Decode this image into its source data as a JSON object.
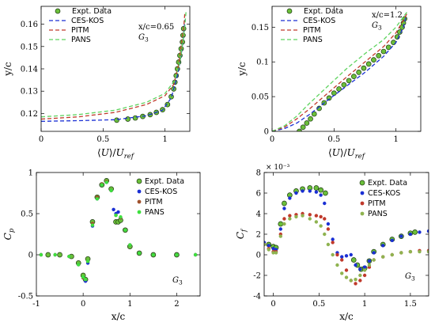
{
  "chart_data": [
    {
      "id": "tl",
      "type": "line",
      "xlabel": "⟨U⟩/U_ref",
      "ylabel": "y/c",
      "xlim": [
        0,
        1.2
      ],
      "ylim": [
        0.112,
        0.168
      ],
      "xticks": [
        0,
        0.5,
        1
      ],
      "xticklabels": [
        "0",
        "0.5",
        "1"
      ],
      "yticks": [
        0.12,
        0.13,
        0.14,
        0.15,
        0.16
      ],
      "yticklabels": [
        "0.12",
        "0.13",
        "0.14",
        "0.15",
        "0.16"
      ],
      "annotations": [
        "x/c=0.65",
        "G₃"
      ],
      "legend": "top-left",
      "series": [
        {
          "name": "Expt. Data",
          "kind": "marker",
          "color": "#6bbf3a",
          "x": [
            0.61,
            0.7,
            0.76,
            0.82,
            0.88,
            0.93,
            0.98,
            1.02,
            1.05,
            1.07,
            1.08,
            1.09,
            1.1,
            1.11,
            1.12,
            1.13,
            1.14,
            1.145,
            1.15
          ],
          "y": [
            0.117,
            0.1175,
            0.118,
            0.1187,
            0.1195,
            0.1205,
            0.1217,
            0.124,
            0.1275,
            0.131,
            0.134,
            0.137,
            0.14,
            0.143,
            0.146,
            0.149,
            0.152,
            0.155,
            0.158
          ]
        },
        {
          "name": "CES-KOS",
          "kind": "dashed",
          "color": "#1a2fd4",
          "x": [
            0.0,
            0.3,
            0.6,
            0.85,
            0.98,
            1.05,
            1.1,
            1.13,
            1.15,
            1.16
          ],
          "y": [
            0.1165,
            0.1168,
            0.1172,
            0.119,
            0.1215,
            0.127,
            0.137,
            0.146,
            0.155,
            0.162
          ]
        },
        {
          "name": "PITM",
          "kind": "dashed",
          "color": "#c0392b",
          "x": [
            0.0,
            0.3,
            0.6,
            0.85,
            1.0,
            1.07,
            1.11,
            1.13,
            1.15,
            1.16
          ],
          "y": [
            0.1175,
            0.1185,
            0.1205,
            0.124,
            0.128,
            0.133,
            0.142,
            0.15,
            0.158,
            0.165
          ]
        },
        {
          "name": "PANS",
          "kind": "dashed",
          "color": "#5fd35f",
          "x": [
            0.0,
            0.3,
            0.6,
            0.85,
            1.0,
            1.08,
            1.12,
            1.14,
            1.16,
            1.17
          ],
          "y": [
            0.1185,
            0.1195,
            0.1215,
            0.125,
            0.129,
            0.135,
            0.143,
            0.151,
            0.159,
            0.166
          ]
        }
      ]
    },
    {
      "id": "tr",
      "type": "line",
      "xlabel": "⟨U⟩/U_ref",
      "ylabel": "y/c",
      "xlim": [
        0,
        1.2
      ],
      "ylim": [
        0,
        0.18
      ],
      "xticks": [
        0,
        0.5,
        1
      ],
      "xticklabels": [
        "0",
        "0.5",
        "1"
      ],
      "yticks": [
        0,
        0.05,
        0.1,
        0.15
      ],
      "yticklabels": [
        "0",
        "0.05",
        "0.1",
        "0.15"
      ],
      "annotations": [
        "x/c=1.2",
        "G₃"
      ],
      "legend": "top-left",
      "series": [
        {
          "name": "Expt. Data",
          "kind": "marker",
          "color": "#6bbf3a",
          "x": [
            0.22,
            0.25,
            0.28,
            0.31,
            0.34,
            0.38,
            0.42,
            0.46,
            0.5,
            0.54,
            0.58,
            0.62,
            0.66,
            0.7,
            0.74,
            0.78,
            0.82,
            0.86,
            0.9,
            0.94,
            0.98,
            1.01,
            1.03,
            1.05,
            1.06,
            1.07
          ],
          "y": [
            0.0,
            0.006,
            0.012,
            0.018,
            0.025,
            0.033,
            0.041,
            0.048,
            0.055,
            0.061,
            0.067,
            0.073,
            0.079,
            0.085,
            0.091,
            0.097,
            0.103,
            0.109,
            0.115,
            0.121,
            0.128,
            0.136,
            0.143,
            0.15,
            0.156,
            0.162
          ]
        },
        {
          "name": "CES-KOS",
          "kind": "dashed",
          "color": "#1a2fd4",
          "x": [
            0.0,
            0.1,
            0.2,
            0.3,
            0.45,
            0.6,
            0.75,
            0.9,
            1.0,
            1.06,
            1.08
          ],
          "y": [
            0.0,
            0.004,
            0.012,
            0.024,
            0.045,
            0.065,
            0.085,
            0.108,
            0.128,
            0.15,
            0.165
          ]
        },
        {
          "name": "PITM",
          "kind": "dashed",
          "color": "#c0392b",
          "x": [
            0.0,
            0.1,
            0.2,
            0.3,
            0.45,
            0.6,
            0.75,
            0.9,
            1.0,
            1.06,
            1.09
          ],
          "y": [
            0.0,
            0.006,
            0.018,
            0.032,
            0.055,
            0.078,
            0.1,
            0.122,
            0.142,
            0.16,
            0.17
          ]
        },
        {
          "name": "PANS",
          "kind": "dashed",
          "color": "#5fd35f",
          "x": [
            0.0,
            0.1,
            0.2,
            0.3,
            0.45,
            0.6,
            0.75,
            0.9,
            1.0,
            1.06,
            1.09
          ],
          "y": [
            0.0,
            0.008,
            0.022,
            0.04,
            0.065,
            0.09,
            0.112,
            0.132,
            0.15,
            0.165,
            0.172
          ]
        }
      ]
    },
    {
      "id": "bl",
      "type": "scatter",
      "xlabel": "x/c",
      "ylabel": "C_p",
      "xlim": [
        -1,
        2.5
      ],
      "ylim": [
        -0.5,
        1
      ],
      "xticks": [
        -1,
        0,
        1,
        2
      ],
      "xticklabels": [
        "-1",
        "0",
        "1",
        "2"
      ],
      "yticks": [
        -0.5,
        0,
        0.5,
        1
      ],
      "yticklabels": [
        "-0.5",
        "0",
        "0.5",
        "1"
      ],
      "annotations": [
        "G₃"
      ],
      "legend": "top-right",
      "series": [
        {
          "name": "Expt. Data",
          "kind": "marker",
          "color": "#6bbf3a",
          "x": [
            -0.75,
            -0.5,
            -0.25,
            -0.1,
            0.0,
            0.05,
            0.1,
            0.2,
            0.3,
            0.4,
            0.5,
            0.6,
            0.7,
            0.75,
            0.8,
            0.9,
            1.0,
            1.2,
            1.5,
            2.0
          ],
          "y": [
            0.0,
            0.0,
            -0.02,
            -0.1,
            -0.25,
            -0.3,
            -0.05,
            0.4,
            0.7,
            0.85,
            0.9,
            0.8,
            0.4,
            0.4,
            0.42,
            0.3,
            0.1,
            0.02,
            0.0,
            0.0
          ]
        },
        {
          "name": "CES-KOS",
          "kind": "marker",
          "color": "#1a2fd4",
          "x": [
            -0.9,
            -0.6,
            -0.3,
            -0.1,
            0.0,
            0.05,
            0.1,
            0.2,
            0.3,
            0.4,
            0.5,
            0.6,
            0.65,
            0.7,
            0.75,
            0.8,
            0.9,
            1.0,
            1.2,
            1.5,
            2.0,
            2.4
          ],
          "y": [
            0.0,
            0.0,
            -0.02,
            -0.12,
            -0.28,
            -0.32,
            -0.1,
            0.35,
            0.68,
            0.85,
            0.88,
            0.78,
            0.55,
            0.5,
            0.52,
            0.45,
            0.3,
            0.12,
            0.02,
            0.0,
            0.0,
            0.0
          ]
        },
        {
          "name": "PITM",
          "kind": "marker",
          "color": "#a0522d",
          "x": [
            -0.9,
            -0.6,
            -0.3,
            -0.1,
            0.0,
            0.05,
            0.1,
            0.2,
            0.3,
            0.4,
            0.5,
            0.6,
            0.7,
            0.8,
            0.9,
            1.0,
            1.2,
            1.5,
            2.0,
            2.4
          ],
          "y": [
            0.0,
            0.0,
            -0.02,
            -0.12,
            -0.28,
            -0.3,
            -0.08,
            0.38,
            0.7,
            0.86,
            0.89,
            0.78,
            0.48,
            0.45,
            0.3,
            0.12,
            0.02,
            0.0,
            0.0,
            0.0
          ]
        },
        {
          "name": "PANS",
          "kind": "marker",
          "color": "#3ee03e",
          "x": [
            -0.9,
            -0.6,
            -0.3,
            -0.1,
            0.0,
            0.05,
            0.1,
            0.2,
            0.3,
            0.4,
            0.5,
            0.6,
            0.7,
            0.8,
            0.9,
            1.0,
            1.2,
            1.5,
            2.0,
            2.4
          ],
          "y": [
            0.0,
            0.0,
            -0.02,
            -0.12,
            -0.27,
            -0.3,
            -0.08,
            0.36,
            0.68,
            0.85,
            0.88,
            0.78,
            0.48,
            0.46,
            0.3,
            0.12,
            0.02,
            0.0,
            0.0,
            0.0
          ]
        }
      ]
    },
    {
      "id": "br",
      "type": "scatter",
      "xlabel": "x/c",
      "ylabel": "C_f",
      "exponent": "× 10⁻³",
      "xlim": [
        -0.1,
        1.7
      ],
      "ylim": [
        -4,
        8
      ],
      "xticks": [
        0,
        0.5,
        1,
        1.5
      ],
      "xticklabels": [
        "0",
        "0.5",
        "1",
        "1.5"
      ],
      "yticks": [
        -4,
        -2,
        0,
        2,
        4,
        6,
        8
      ],
      "yticklabels": [
        "-4",
        "-2",
        "0",
        "2",
        "4",
        "6",
        "8"
      ],
      "annotations": [
        "G₃"
      ],
      "legend": "top-right",
      "series": [
        {
          "name": "Expt. Data",
          "kind": "marker",
          "color": "#6bbf3a",
          "x": [
            -0.05,
            0.0,
            0.03,
            0.08,
            0.12,
            0.18,
            0.25,
            0.32,
            0.4,
            0.47,
            0.52,
            0.57,
            0.88,
            0.92,
            0.96,
            1.0,
            1.05,
            1.1,
            1.2,
            1.3,
            1.4,
            1.5,
            1.55
          ],
          "y": [
            1.0,
            0.8,
            0.7,
            3.0,
            5.0,
            5.8,
            6.2,
            6.4,
            6.5,
            6.5,
            6.3,
            6.0,
            -0.5,
            -1.0,
            -1.4,
            -1.3,
            -0.6,
            0.3,
            1.0,
            1.5,
            1.8,
            2.1,
            2.2
          ]
        },
        {
          "name": "CES-KOS",
          "kind": "marker",
          "color": "#1a2fd4",
          "x": [
            -0.1,
            -0.05,
            0.0,
            0.03,
            0.08,
            0.12,
            0.18,
            0.25,
            0.32,
            0.4,
            0.47,
            0.52,
            0.56,
            0.6,
            0.65,
            0.7,
            0.75,
            0.8,
            0.85,
            0.9,
            0.95,
            1.0,
            1.05,
            1.1,
            1.2,
            1.3,
            1.4,
            1.5,
            1.6,
            1.7
          ],
          "y": [
            1.2,
            0.9,
            0.6,
            0.5,
            2.5,
            4.5,
            5.5,
            6.0,
            6.2,
            6.2,
            6.1,
            5.8,
            5.0,
            3.0,
            1.5,
            0.2,
            -0.2,
            -0.1,
            0.0,
            -1.0,
            -1.4,
            -1.2,
            -0.6,
            0.2,
            0.9,
            1.4,
            1.8,
            2.0,
            2.2,
            2.3
          ]
        },
        {
          "name": "PITM",
          "kind": "marker",
          "color": "#c0392b",
          "x": [
            -0.1,
            -0.05,
            0.0,
            0.03,
            0.08,
            0.12,
            0.18,
            0.25,
            0.32,
            0.4,
            0.47,
            0.52,
            0.56,
            0.6,
            0.65,
            0.7,
            0.75,
            0.8,
            0.85,
            0.9,
            0.95,
            1.0,
            1.05,
            1.1,
            1.2,
            1.3,
            1.4,
            1.5,
            1.6,
            1.7
          ],
          "y": [
            1.0,
            0.6,
            0.3,
            0.3,
            2.0,
            3.5,
            3.8,
            3.9,
            4.0,
            3.9,
            3.8,
            3.7,
            3.5,
            2.5,
            1.2,
            0.0,
            -0.5,
            -1.5,
            -2.5,
            -2.8,
            -2.5,
            -2.0,
            -1.2,
            -0.5,
            -0.2,
            0.0,
            0.2,
            0.3,
            0.4,
            0.4
          ]
        },
        {
          "name": "PANS",
          "kind": "marker",
          "color": "#8fb350",
          "x": [
            -0.1,
            -0.05,
            0.0,
            0.03,
            0.08,
            0.12,
            0.18,
            0.25,
            0.32,
            0.4,
            0.47,
            0.52,
            0.56,
            0.6,
            0.65,
            0.7,
            0.75,
            0.8,
            0.85,
            0.9,
            0.95,
            1.0,
            1.05,
            1.1,
            1.2,
            1.3,
            1.4,
            1.5,
            1.6,
            1.7
          ],
          "y": [
            1.0,
            0.5,
            0.2,
            0.2,
            1.8,
            3.0,
            3.5,
            3.7,
            3.8,
            3.5,
            3.2,
            2.8,
            2.0,
            1.0,
            0.0,
            -1.0,
            -1.8,
            -2.2,
            -2.5,
            -2.4,
            -2.0,
            -1.5,
            -1.0,
            -0.5,
            -0.2,
            0.0,
            0.2,
            0.3,
            0.3,
            0.3
          ]
        }
      ]
    }
  ]
}
